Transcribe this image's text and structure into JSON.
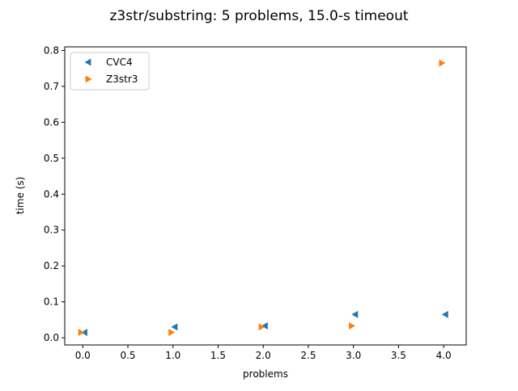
{
  "chart_data": {
    "type": "scatter",
    "title": "z3str/substring: 5 problems, 15.0-s timeout",
    "xlabel": "problems",
    "ylabel": "time (s)",
    "xlim": [
      -0.2,
      4.25
    ],
    "ylim": [
      -0.02,
      0.81
    ],
    "x_ticks": [
      0.0,
      0.5,
      1.0,
      1.5,
      2.0,
      2.5,
      3.0,
      3.5,
      4.0
    ],
    "x_tick_labels": [
      "0.0",
      "0.5",
      "1.0",
      "1.5",
      "2.0",
      "2.5",
      "3.0",
      "3.5",
      "4.0"
    ],
    "y_ticks": [
      0.0,
      0.1,
      0.2,
      0.3,
      0.4,
      0.5,
      0.6,
      0.7,
      0.8
    ],
    "y_tick_labels": [
      "0.0",
      "0.1",
      "0.2",
      "0.3",
      "0.4",
      "0.5",
      "0.6",
      "0.7",
      "0.8"
    ],
    "grid": false,
    "legend_position": "top-left",
    "series": [
      {
        "name": "CVC4",
        "marker": "triangle-left",
        "color": "#1f77b4",
        "x": [
          0.02,
          1.02,
          2.02,
          3.02,
          4.02
        ],
        "y": [
          0.015,
          0.03,
          0.033,
          0.065,
          0.065
        ]
      },
      {
        "name": "Z3str3",
        "marker": "triangle-right",
        "color": "#ff7f0e",
        "x": [
          -0.02,
          0.98,
          1.98,
          2.98,
          3.98
        ],
        "y": [
          0.015,
          0.015,
          0.03,
          0.033,
          0.765
        ]
      }
    ]
  }
}
